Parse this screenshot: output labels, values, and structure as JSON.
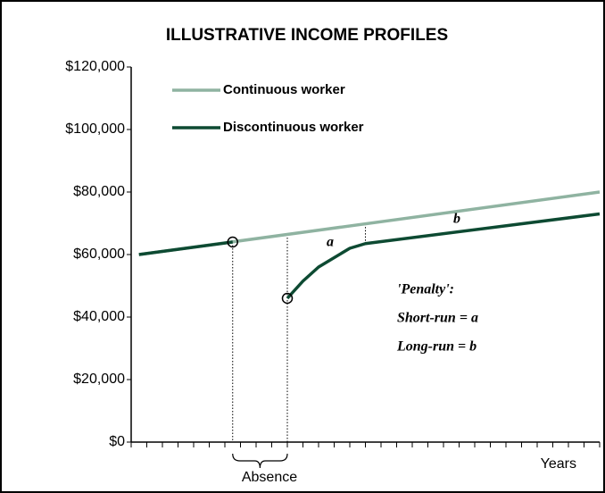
{
  "chart_data": {
    "type": "line",
    "title": "ILLUSTRATIVE INCOME PROFILES",
    "x_label": "Years",
    "series": [
      {
        "name": "Continuous worker",
        "color": "#8fb3a1",
        "x": [
          0.5,
          30
        ],
        "values": [
          60000,
          80000
        ]
      },
      {
        "name": "Discontinuous worker",
        "color": "#0d4a32",
        "x": [
          0.5,
          6.5,
          8,
          10,
          11,
          12,
          14,
          15,
          30
        ],
        "values": [
          60000,
          64000,
          null,
          46000,
          51500,
          56000,
          62000,
          63500,
          73000
        ]
      }
    ],
    "xlim": [
      0,
      30
    ],
    "xticks": [
      0,
      1,
      2,
      3,
      4,
      5,
      6,
      7,
      8,
      9,
      10,
      11,
      12,
      13,
      14,
      15,
      16,
      17,
      18,
      19,
      20,
      21,
      22,
      23,
      24,
      25,
      26,
      27,
      28,
      29,
      30
    ],
    "ylim": [
      0,
      120000
    ],
    "yticks": [
      {
        "value": 0,
        "label": "$0"
      },
      {
        "value": 20000,
        "label": "$20,000"
      },
      {
        "value": 40000,
        "label": "$40,000"
      },
      {
        "value": 60000,
        "label": "$60,000"
      },
      {
        "value": 80000,
        "label": "$80,000"
      },
      {
        "value": 100000,
        "label": "$100,000"
      },
      {
        "value": 120000,
        "label": "$120,000"
      }
    ],
    "annotations": {
      "absence": "Absence",
      "short_label": "a",
      "long_label": "b",
      "penalty": "'Penalty':",
      "short_run": "Short-run = a",
      "long_run": "Long-run = b"
    }
  }
}
